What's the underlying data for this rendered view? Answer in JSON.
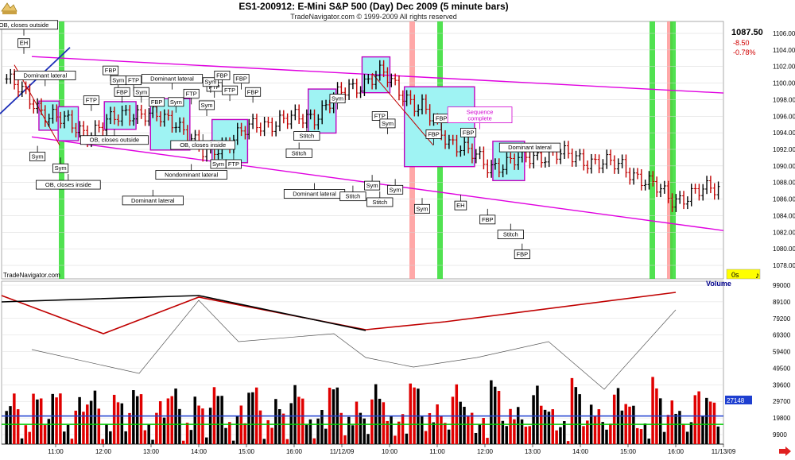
{
  "window": {
    "title": "ES1-200912:  E-Mini S&P 500 (Day) Dec 2009  (5 minute bars)",
    "copyright": "TradeNavigator.com © 1999-2009 All rights reserved",
    "watermark": "TradeNavigator.com"
  },
  "quote": {
    "last": "1087.50",
    "change": "-8.50",
    "pct_change": "-0.78%"
  },
  "colors": {
    "background": "#ffffff",
    "channel": "#e000e0",
    "bear_trend": "#c00000",
    "bull_trend": "#000000",
    "box_fill": "#9ff3f3",
    "box_border": "#c000c0",
    "tick_highlight": "#ffff00",
    "vol_up": "#000000",
    "vol_down": "#e00000",
    "green_band": "#33dd33",
    "pink_band": "#ff9999"
  },
  "volume_label": "Volume",
  "zero_label": "0s",
  "chart_data": [
    {
      "type": "bar",
      "name": "ES1-200912 price (5 minute OHLC)",
      "title": "ES1-200912:  E-Mini S&P 500 (Day) Dec 2009  (5 minute bars)",
      "ylim": [
        1075,
        1110
      ],
      "y_ticks": [
        "1106.00",
        "1104.00",
        "1102.00",
        "1100.00",
        "1098.00",
        "1096.00",
        "1094.00",
        "1092.00",
        "1090.00",
        "1088.00",
        "1086.00",
        "1084.00",
        "1082.00",
        "1080.00",
        "1078.00"
      ],
      "x_ticks": [
        "11:00",
        "12:00",
        "13:00",
        "14:00",
        "15:00",
        "16:00",
        "11/12/09",
        "10:00",
        "11:00",
        "12:00",
        "13:00",
        "14:00",
        "15:00",
        "16:00",
        "11/13/09"
      ],
      "segments": [
        {
          "n": 12,
          "start": 1100.5,
          "end": 1096
        },
        {
          "n": 10,
          "start": 1096,
          "end": 1094
        },
        {
          "n": 10,
          "start": 1094,
          "end": 1096.5
        },
        {
          "n": 12,
          "start": 1096.5,
          "end": 1095.5
        },
        {
          "n": 8,
          "start": 1095.5,
          "end": 1091.5
        },
        {
          "n": 14,
          "start": 1091.5,
          "end": 1095
        },
        {
          "n": 14,
          "start": 1095,
          "end": 1096
        },
        {
          "n": 10,
          "start": 1096,
          "end": 1099.5
        },
        {
          "n": 8,
          "start": 1099.5,
          "end": 1101
        },
        {
          "n": 10,
          "start": 1101,
          "end": 1097
        },
        {
          "n": 8,
          "start": 1097,
          "end": 1093
        },
        {
          "n": 10,
          "start": 1093,
          "end": 1090
        },
        {
          "n": 16,
          "start": 1090,
          "end": 1091.5
        },
        {
          "n": 18,
          "start": 1091.5,
          "end": 1090
        },
        {
          "n": 14,
          "start": 1090,
          "end": 1086
        },
        {
          "n": 12,
          "start": 1086,
          "end": 1087.5
        }
      ],
      "annotations": [
        {
          "text": "OB, closes outside",
          "x": 1,
          "price": 1106.5,
          "pointer": "down"
        },
        {
          "text": "EH",
          "x": 2,
          "price": 1104.3,
          "pointer": "down"
        },
        {
          "text": "Dominant lateral",
          "x": 10,
          "price": 1100.4,
          "pointer": "down"
        },
        {
          "text": "Sym",
          "x": 8,
          "price": 1090.6,
          "pointer": "up"
        },
        {
          "text": "Sym",
          "x": 14,
          "price": 1089.2,
          "pointer": "up"
        },
        {
          "text": "OB, closes inside",
          "x": 16,
          "price": 1087.2,
          "pointer": "up"
        },
        {
          "text": "FTP",
          "x": 22,
          "price": 1097.4,
          "pointer": "down"
        },
        {
          "text": "FBP",
          "x": 27,
          "price": 1101.0,
          "pointer": "down"
        },
        {
          "text": "Sym",
          "x": 29,
          "price": 1099.8,
          "pointer": "down"
        },
        {
          "text": "FBP",
          "x": 30,
          "price": 1098.4,
          "pointer": "down"
        },
        {
          "text": "FTP",
          "x": 33,
          "price": 1099.8,
          "pointer": "down"
        },
        {
          "text": "Sym",
          "x": 35,
          "price": 1098.4,
          "pointer": "down"
        },
        {
          "text": "OB, closes outside",
          "x": 28,
          "price": 1092.6,
          "pointer": "up"
        },
        {
          "text": "Dominant lateral",
          "x": 43,
          "price": 1100.0,
          "pointer": "down"
        },
        {
          "text": "FBP",
          "x": 39,
          "price": 1097.2,
          "pointer": "down"
        },
        {
          "text": "Sym",
          "x": 44,
          "price": 1097.2,
          "pointer": "down"
        },
        {
          "text": "Dominant lateral",
          "x": 38,
          "price": 1085.3,
          "pointer": "up"
        },
        {
          "text": "FTP",
          "x": 48,
          "price": 1098.2,
          "pointer": "down"
        },
        {
          "text": "Sym",
          "x": 52,
          "price": 1096.8,
          "pointer": "down"
        },
        {
          "text": "FTP",
          "x": 54,
          "price": 1099.0,
          "pointer": "down"
        },
        {
          "text": "Sym",
          "x": 53,
          "price": 1099.6,
          "pointer": "down"
        },
        {
          "text": "FBP",
          "x": 56,
          "price": 1100.4,
          "pointer": "down"
        },
        {
          "text": "FTP",
          "x": 58,
          "price": 1098.6,
          "pointer": "down"
        },
        {
          "text": "FBP",
          "x": 61,
          "price": 1100.0,
          "pointer": "down"
        },
        {
          "text": "FBP",
          "x": 64,
          "price": 1098.4,
          "pointer": "down"
        },
        {
          "text": "Sym",
          "x": 55,
          "price": 1089.7,
          "pointer": "up"
        },
        {
          "text": "FTP",
          "x": 59,
          "price": 1089.7,
          "pointer": "up"
        },
        {
          "text": "OB, closes inside",
          "x": 51,
          "price": 1092.0,
          "pointer": "up"
        },
        {
          "text": "Nondominant lateral",
          "x": 48,
          "price": 1088.4,
          "pointer": "up"
        },
        {
          "text": "Sym",
          "x": 86,
          "price": 1097.6,
          "pointer": "down"
        },
        {
          "text": "Stitch",
          "x": 78,
          "price": 1093.1,
          "pointer": "up"
        },
        {
          "text": "Stitch",
          "x": 76,
          "price": 1091.0,
          "pointer": "up"
        },
        {
          "text": "Dominant lateral",
          "x": 80,
          "price": 1086.1,
          "pointer": "up"
        },
        {
          "text": "Stitch",
          "x": 90,
          "price": 1085.8,
          "pointer": "up"
        },
        {
          "text": "FTP",
          "x": 97,
          "price": 1095.5,
          "pointer": "down"
        },
        {
          "text": "Sym",
          "x": 99,
          "price": 1094.6,
          "pointer": "down"
        },
        {
          "text": "Sym",
          "x": 95,
          "price": 1087.1,
          "pointer": "up"
        },
        {
          "text": "Stitch",
          "x": 97,
          "price": 1085.1,
          "pointer": "up"
        },
        {
          "text": "Sym",
          "x": 101,
          "price": 1086.6,
          "pointer": "up"
        },
        {
          "text": "FBP",
          "x": 111,
          "price": 1093.3,
          "pointer": "down"
        },
        {
          "text": "FBP",
          "x": 113,
          "price": 1095.2,
          "pointer": "down"
        },
        {
          "text": "FBP",
          "x": 120,
          "price": 1093.5,
          "pointer": "down"
        },
        {
          "text": "Sym",
          "x": 108,
          "price": 1084.3,
          "pointer": "up"
        },
        {
          "text": "EH",
          "x": 118,
          "price": 1084.7,
          "pointer": "up"
        },
        {
          "text": "Sequence complete",
          "x": 123,
          "price": 1095.2,
          "pointer": "down"
        },
        {
          "text": "FBP",
          "x": 125,
          "price": 1083.0,
          "pointer": "up"
        },
        {
          "text": "Dominant lateral",
          "x": 136,
          "price": 1091.7,
          "pointer": "down"
        },
        {
          "text": "Stitch",
          "x": 131,
          "price": 1081.2,
          "pointer": "up"
        },
        {
          "text": "FBP",
          "x": 134,
          "price": 1078.8,
          "pointer": "up"
        }
      ]
    },
    {
      "type": "bar",
      "name": "Volume",
      "ylim": [
        0,
        90000
      ],
      "y_ticks": [
        "99000",
        "89100",
        "79200",
        "69300",
        "59400",
        "49500",
        "39600",
        "29700",
        "19800",
        "9900"
      ],
      "current_value": "27148"
    }
  ]
}
